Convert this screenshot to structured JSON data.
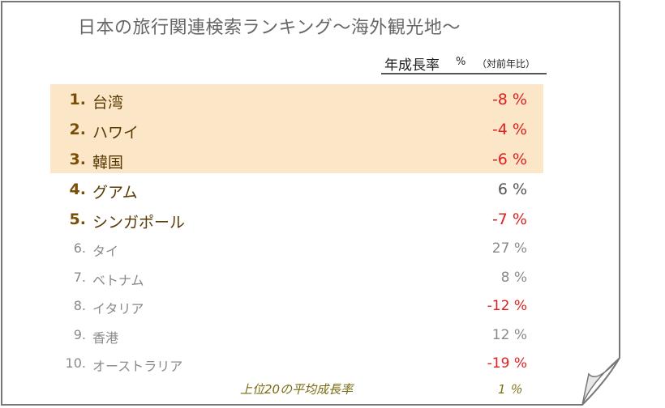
{
  "title": "日本の旅行関連検索ランキング〜海外観光地〜",
  "column_header": {
    "label": "年成長率",
    "unit": "%",
    "note": "（対前年比）"
  },
  "rows": [
    {
      "rank": "1.",
      "name": "台湾",
      "value": "-8 %",
      "negative": true
    },
    {
      "rank": "2.",
      "name": "ハワイ",
      "value": "-4 %",
      "negative": true
    },
    {
      "rank": "3.",
      "name": "韓国",
      "value": "-6 %",
      "negative": true
    },
    {
      "rank": "4.",
      "name": "グアム",
      "value": "6 %",
      "negative": false
    },
    {
      "rank": "5.",
      "name": "シンガポール",
      "value": "-7 %",
      "negative": true
    },
    {
      "rank": "6.",
      "name": "タイ",
      "value": "27 %",
      "negative": false
    },
    {
      "rank": "7.",
      "name": "ベトナム",
      "value": "8 %",
      "negative": false
    },
    {
      "rank": "8.",
      "name": "イタリア",
      "value": "-12 %",
      "negative": true
    },
    {
      "rank": "9.",
      "name": "香港",
      "value": "12 %",
      "negative": false
    },
    {
      "rank": "10.",
      "name": "オーストラリア",
      "value": "-19 %",
      "negative": true
    }
  ],
  "footer": {
    "label": "上位20の平均成長率",
    "value": "1 ％"
  },
  "colors": {
    "highlight": "#fbe7c8",
    "negative": "#e02020",
    "rank_top": "#7a4e06",
    "minor_text": "#8a8a8a"
  }
}
